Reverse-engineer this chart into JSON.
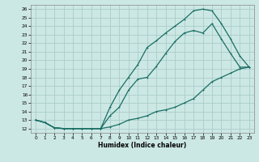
{
  "xlabel": "Humidex (Indice chaleur)",
  "bg_color": "#cce8e4",
  "grid_color": "#aacccc",
  "line_color": "#1a6e64",
  "xlim": [
    -0.5,
    23.5
  ],
  "ylim": [
    11.5,
    26.5
  ],
  "xticks": [
    0,
    1,
    2,
    3,
    4,
    5,
    6,
    7,
    8,
    9,
    10,
    11,
    12,
    13,
    14,
    15,
    16,
    17,
    18,
    19,
    20,
    21,
    22,
    23
  ],
  "yticks": [
    12,
    13,
    14,
    15,
    16,
    17,
    18,
    19,
    20,
    21,
    22,
    23,
    24,
    25,
    26
  ],
  "line_bottom_x": [
    0,
    1,
    2,
    3,
    4,
    5,
    6,
    7,
    8,
    9,
    10,
    11,
    12,
    13,
    14,
    15,
    16,
    17,
    18,
    19,
    20,
    21,
    22,
    23
  ],
  "line_bottom_y": [
    13.0,
    12.7,
    12.1,
    12.0,
    12.0,
    12.0,
    12.0,
    12.0,
    12.2,
    12.5,
    13.0,
    13.2,
    13.5,
    14.0,
    14.2,
    14.5,
    15.0,
    15.5,
    16.5,
    17.5,
    18.0,
    18.5,
    19.0,
    19.2
  ],
  "line_mid_x": [
    0,
    1,
    2,
    3,
    4,
    5,
    6,
    7,
    8,
    9,
    10,
    11,
    12,
    13,
    14,
    15,
    16,
    17,
    18,
    19,
    20,
    21,
    22,
    23
  ],
  "line_mid_y": [
    13.0,
    12.7,
    12.1,
    12.0,
    12.0,
    12.0,
    12.0,
    12.0,
    13.5,
    14.5,
    16.5,
    17.8,
    18.0,
    19.3,
    20.8,
    22.2,
    23.2,
    23.5,
    23.2,
    24.3,
    22.5,
    20.8,
    19.2,
    19.2
  ],
  "line_top_x": [
    0,
    1,
    2,
    3,
    4,
    5,
    6,
    7,
    8,
    9,
    10,
    11,
    12,
    13,
    14,
    15,
    16,
    17,
    18,
    19,
    20,
    21,
    22,
    23
  ],
  "line_top_y": [
    13.0,
    12.7,
    12.1,
    12.0,
    12.0,
    12.0,
    12.0,
    12.0,
    14.5,
    16.5,
    18.0,
    19.5,
    21.5,
    22.3,
    23.2,
    24.0,
    24.8,
    25.8,
    26.0,
    25.8,
    24.3,
    22.5,
    20.5,
    19.2
  ]
}
